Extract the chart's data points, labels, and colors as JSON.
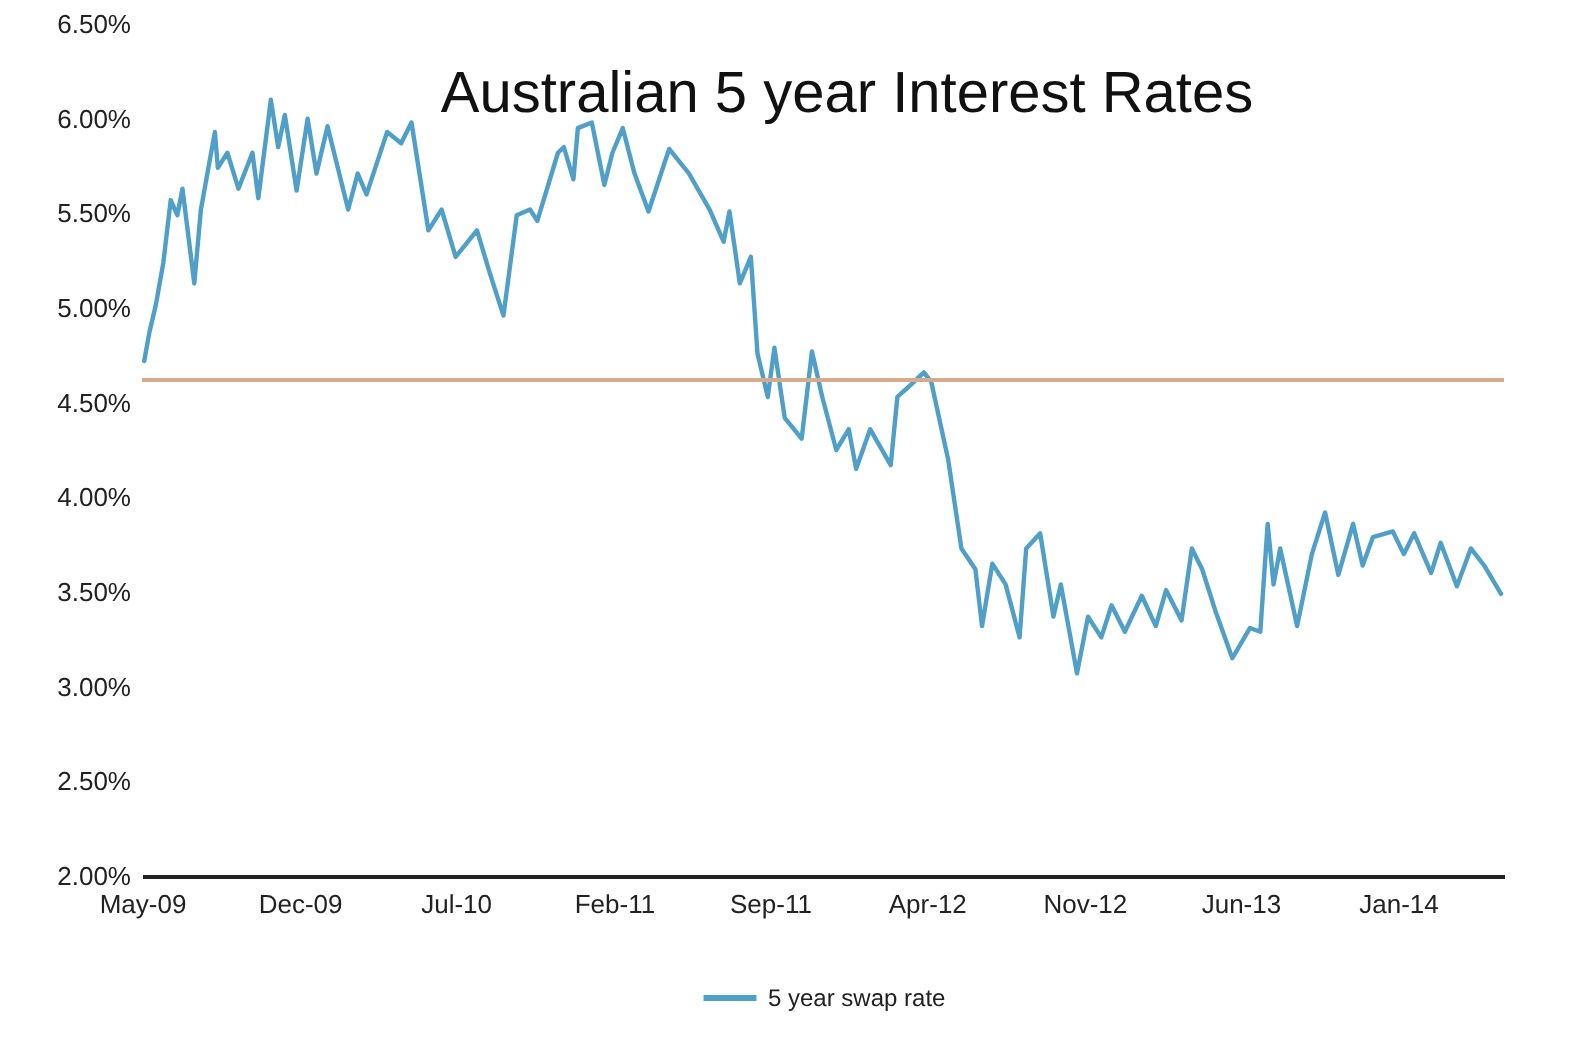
{
  "chart_data": {
    "type": "line",
    "title": "Australian 5 year Interest Rates",
    "xlim": [
      "2009-05-01",
      "2014-05-25"
    ],
    "xticks": [
      {
        "value": "2009-05-01",
        "label": "May-09"
      },
      {
        "value": "2009-12-01",
        "label": "Dec-09"
      },
      {
        "value": "2010-07-01",
        "label": "Jul-10"
      },
      {
        "value": "2011-02-01",
        "label": "Feb-11"
      },
      {
        "value": "2011-09-01",
        "label": "Sep-11"
      },
      {
        "value": "2012-04-01",
        "label": "Apr-12"
      },
      {
        "value": "2012-11-01",
        "label": "Nov-12"
      },
      {
        "value": "2013-06-01",
        "label": "Jun-13"
      },
      {
        "value": "2014-01-01",
        "label": "Jan-14"
      }
    ],
    "ylim": [
      2,
      6.5
    ],
    "yticks": [
      {
        "value": 2,
        "label": "2.00%"
      },
      {
        "value": 2.5,
        "label": "2.50%"
      },
      {
        "value": 3,
        "label": "3.00%"
      },
      {
        "value": 3.5,
        "label": "3.50%"
      },
      {
        "value": 4,
        "label": "4.00%"
      },
      {
        "value": 4.5,
        "label": "4.50%"
      },
      {
        "value": 5,
        "label": "5.00%"
      },
      {
        "value": 5.5,
        "label": "5.50%"
      },
      {
        "value": 6,
        "label": "6.00%"
      },
      {
        "value": 6.5,
        "label": "6.50%"
      }
    ],
    "legend": "bottom",
    "ref_lines": [
      {
        "axis": "y",
        "value": 4.62,
        "color": "#d4ab8c"
      }
    ],
    "series": [
      {
        "name": "5 year swap rate",
        "color": "#4f9fc8",
        "x": [
          "2009-05-04",
          "2009-05-11",
          "2009-05-20",
          "2009-05-30",
          "2009-06-09",
          "2009-06-18",
          "2009-06-25",
          "2009-07-11",
          "2009-07-20",
          "2009-08-08",
          "2009-08-12",
          "2009-08-25",
          "2009-09-09",
          "2009-09-28",
          "2009-10-06",
          "2009-10-23",
          "2009-11-02",
          "2009-11-11",
          "2009-11-27",
          "2009-12-12",
          "2009-12-24",
          "2010-01-08",
          "2010-02-05",
          "2010-02-18",
          "2010-03-02",
          "2010-03-30",
          "2010-04-18",
          "2010-05-02",
          "2010-05-25",
          "2010-06-12",
          "2010-07-01",
          "2010-07-30",
          "2010-08-16",
          "2010-09-04",
          "2010-09-22",
          "2010-10-10",
          "2010-10-20",
          "2010-11-17",
          "2010-11-25",
          "2010-12-08",
          "2010-12-14",
          "2011-01-02",
          "2011-01-19",
          "2011-01-30",
          "2011-02-13",
          "2011-03-01",
          "2011-03-20",
          "2011-04-17",
          "2011-05-14",
          "2011-06-11",
          "2011-06-30",
          "2011-07-08",
          "2011-07-22",
          "2011-08-06",
          "2011-08-15",
          "2011-08-29",
          "2011-09-07",
          "2011-09-21",
          "2011-10-14",
          "2011-10-28",
          "2011-11-11",
          "2011-11-30",
          "2011-12-17",
          "2011-12-27",
          "2012-01-15",
          "2012-02-12",
          "2012-02-21",
          "2012-03-09",
          "2012-03-28",
          "2012-04-07",
          "2012-04-30",
          "2012-05-18",
          "2012-06-06",
          "2012-06-15",
          "2012-06-29",
          "2012-07-17",
          "2012-08-05",
          "2012-08-14",
          "2012-09-02",
          "2012-09-20",
          "2012-09-30",
          "2012-10-22",
          "2012-11-06",
          "2012-11-24",
          "2012-12-08",
          "2012-12-26",
          "2013-01-18",
          "2013-02-06",
          "2013-02-20",
          "2013-03-13",
          "2013-03-27",
          "2013-04-10",
          "2013-04-28",
          "2013-05-21",
          "2013-06-14",
          "2013-06-28",
          "2013-07-08",
          "2013-07-16",
          "2013-07-25",
          "2013-08-17",
          "2013-09-06",
          "2013-09-24",
          "2013-10-12",
          "2013-11-01",
          "2013-11-14",
          "2013-11-28",
          "2013-12-25",
          "2014-01-09",
          "2014-01-23",
          "2014-02-15",
          "2014-02-28",
          "2014-03-22",
          "2014-04-10",
          "2014-04-28",
          "2014-05-21"
        ],
        "values": [
          4.72,
          4.87,
          5.02,
          5.24,
          5.57,
          5.49,
          5.63,
          5.13,
          5.52,
          5.93,
          5.74,
          5.82,
          5.63,
          5.82,
          5.58,
          6.1,
          5.85,
          6.02,
          5.62,
          6.0,
          5.71,
          5.96,
          5.52,
          5.71,
          5.6,
          5.93,
          5.87,
          5.98,
          5.41,
          5.52,
          5.27,
          5.41,
          5.19,
          4.96,
          5.49,
          5.52,
          5.46,
          5.82,
          5.85,
          5.68,
          5.95,
          5.98,
          5.65,
          5.82,
          5.95,
          5.71,
          5.51,
          5.84,
          5.71,
          5.52,
          5.35,
          5.51,
          5.13,
          5.27,
          4.76,
          4.53,
          4.79,
          4.42,
          4.31,
          4.77,
          4.53,
          4.25,
          4.36,
          4.15,
          4.36,
          4.17,
          4.53,
          4.59,
          4.66,
          4.61,
          4.2,
          3.73,
          3.62,
          3.32,
          3.65,
          3.54,
          3.26,
          3.73,
          3.81,
          3.37,
          3.54,
          3.07,
          3.37,
          3.26,
          3.43,
          3.29,
          3.48,
          3.32,
          3.51,
          3.35,
          3.73,
          3.62,
          3.4,
          3.15,
          3.31,
          3.29,
          3.86,
          3.54,
          3.73,
          3.32,
          3.7,
          3.92,
          3.59,
          3.86,
          3.64,
          3.79,
          3.82,
          3.7,
          3.81,
          3.6,
          3.76,
          3.53,
          3.73,
          3.64,
          3.49
        ]
      }
    ]
  }
}
